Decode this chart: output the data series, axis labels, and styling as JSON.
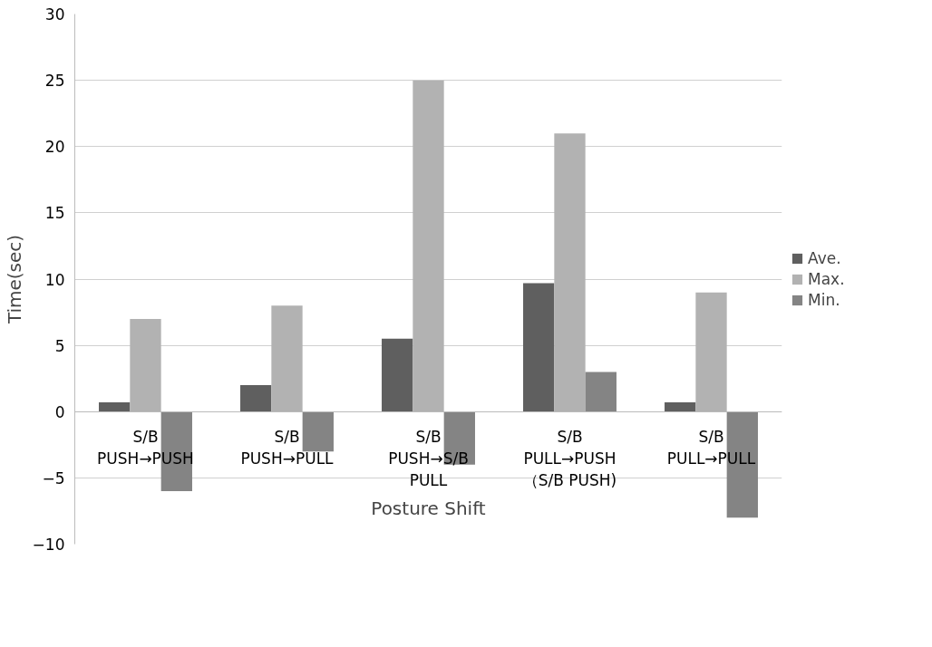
{
  "chart_data": {
    "type": "bar",
    "xlabel": "Posture Shift",
    "ylabel": "Time(sec)",
    "categories": [
      "S/B\nPUSH→PUSH",
      "S/B\nPUSH→PULL",
      "S/B\nPUSH→S/B\nPULL",
      "S/B\nPULL→PUSH\n（S/B PUSH)",
      "S/B\nPULL→PULL"
    ],
    "series": [
      {
        "name": "Ave.",
        "color": "#5f5f5f",
        "values": [
          0.7,
          2,
          5.5,
          9.7,
          0.7
        ]
      },
      {
        "name": "Max.",
        "color": "#b2b2b2",
        "values": [
          7,
          8,
          25,
          21,
          9
        ]
      },
      {
        "name": "Min.",
        "color": "#848484",
        "values": [
          -6,
          -3,
          -4,
          3,
          -8
        ]
      }
    ],
    "ylim": [
      -10,
      30
    ],
    "yticks": [
      -10,
      -5,
      0,
      5,
      10,
      15,
      20,
      25,
      30
    ],
    "grid": "y",
    "legend": "right"
  }
}
